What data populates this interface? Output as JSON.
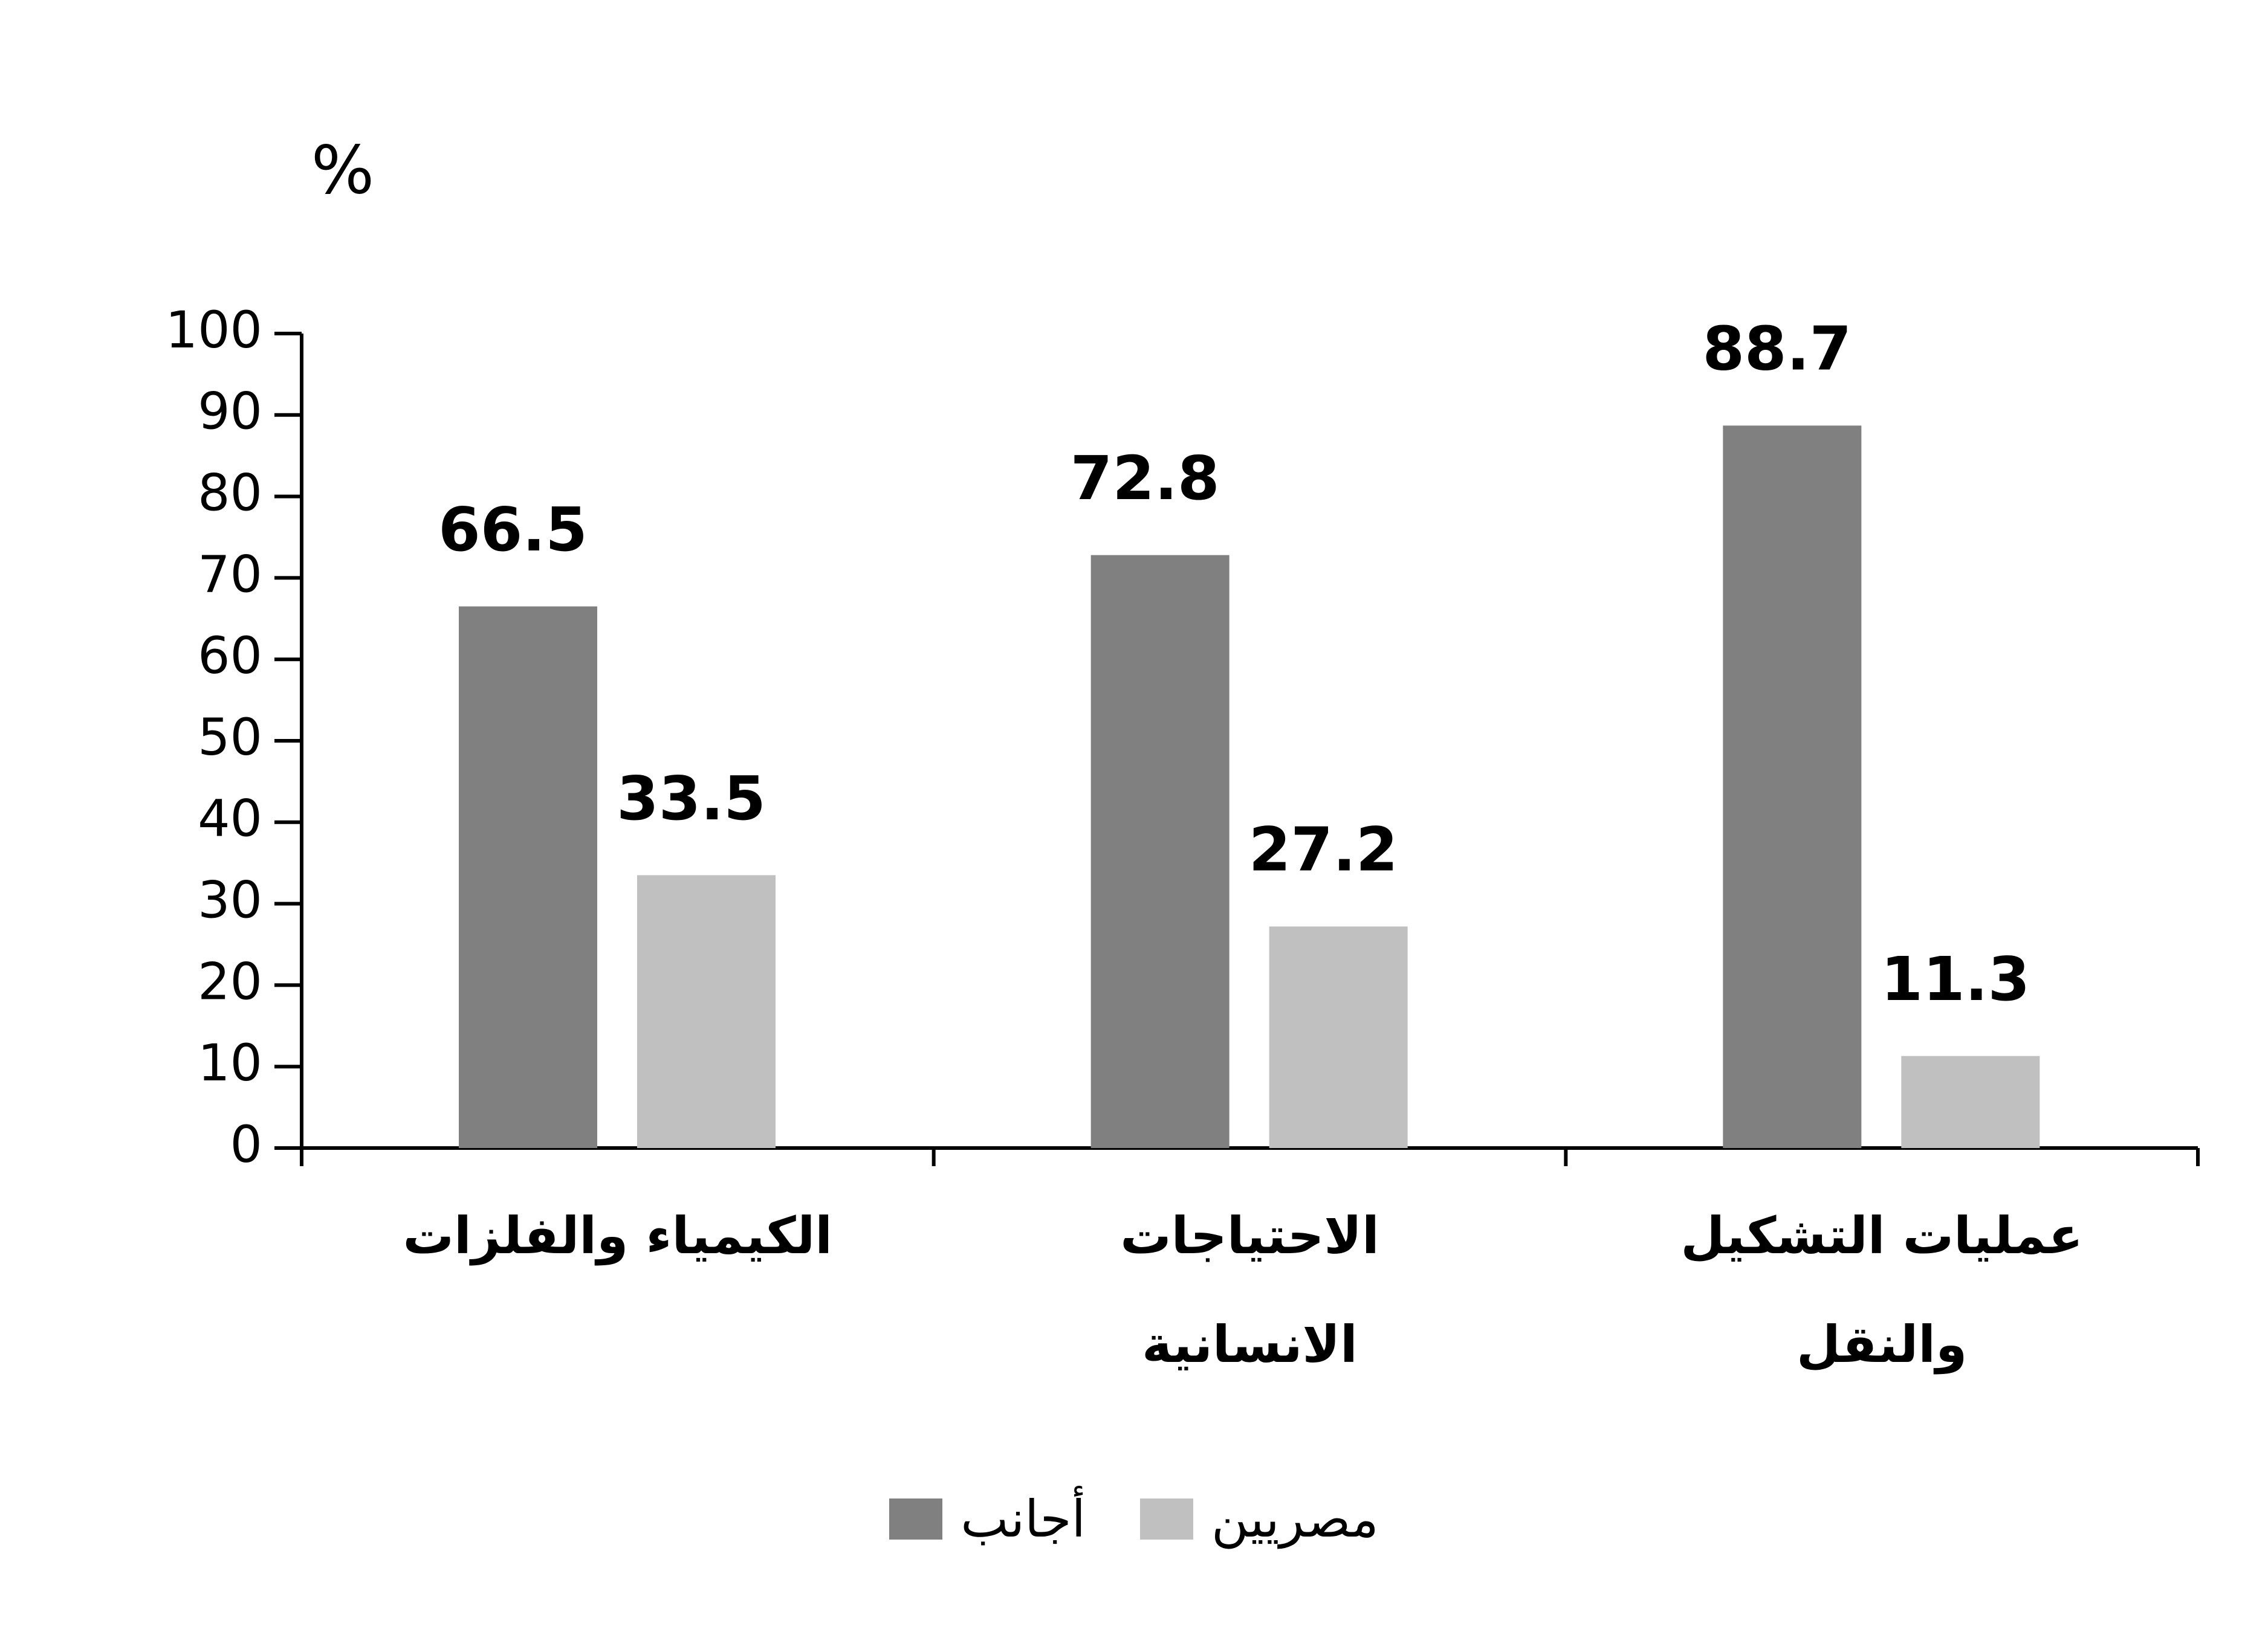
{
  "chart_data": {
    "type": "bar",
    "unit_label": "%",
    "categories": [
      "الكيمياء والفلزات",
      "الاحتياجات\nالانسانية",
      "عمليات التشكيل\nوالنقل"
    ],
    "series": [
      {
        "name": "أجانب",
        "color": "#808080",
        "values": [
          66.5,
          72.8,
          88.7
        ]
      },
      {
        "name": "مصريين",
        "color": "#c0c0c0",
        "values": [
          33.5,
          27.2,
          11.3
        ]
      }
    ],
    "ylim": [
      0,
      100
    ],
    "yticks": [
      0,
      10,
      20,
      30,
      40,
      50,
      60,
      70,
      80,
      90,
      100
    ]
  }
}
